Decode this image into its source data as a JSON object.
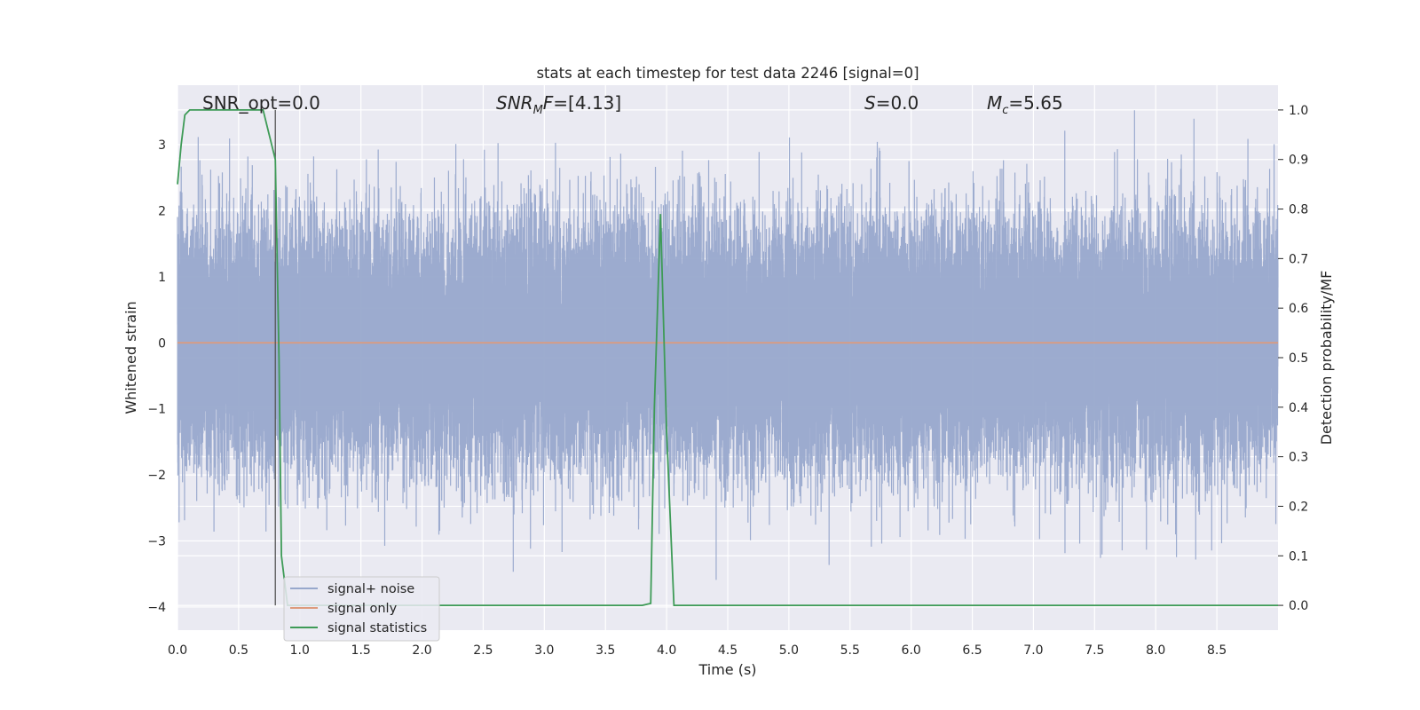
{
  "chart_data": {
    "type": "line",
    "title": "stats at each timestep for test data 2246 [signal=0]",
    "xlabel": "Time (s)",
    "ylabel": "Whitened strain",
    "y2label": "Detection probability/MF",
    "xlim": [
      0,
      9.0
    ],
    "ylim": [
      -4.35,
      3.9
    ],
    "y2lim": [
      -0.05,
      1.05
    ],
    "x_ticks": [
      "0.0",
      "0.5",
      "1.0",
      "1.5",
      "2.0",
      "2.5",
      "3.0",
      "3.5",
      "4.0",
      "4.5",
      "5.0",
      "5.5",
      "6.0",
      "6.5",
      "7.0",
      "7.5",
      "8.0",
      "8.5"
    ],
    "y_ticks": [
      "3",
      "2",
      "1",
      "0",
      "−1",
      "−2",
      "−3",
      "−4"
    ],
    "y2_ticks": [
      "1.0",
      "0.9",
      "0.8",
      "0.7",
      "0.6",
      "0.5",
      "0.4",
      "0.3",
      "0.2",
      "0.1",
      "0.0"
    ],
    "grid": true,
    "legend_position": "lower-left",
    "annotations": {
      "snr_opt": "SNR_opt=0.0",
      "snr_mf_sym": "SNR",
      "snr_mf_sub": "M",
      "snr_mf_sym2": "F",
      "snr_mf_val": "=[4.13]",
      "s_sym": "S",
      "s_val": "=0.0",
      "mc_sym": "M",
      "mc_sub": "c",
      "mc_val": "=5.65"
    },
    "vertical_marker_x": 0.8,
    "series": [
      {
        "name": "signal+ noise",
        "color": "#98a8cc",
        "kind": "noise",
        "sample_rate": 4096,
        "amplitude_std": 0.9
      },
      {
        "name": "signal only",
        "color": "#dd9a7c",
        "kind": "line",
        "x": [
          0.0,
          9.0
        ],
        "y": [
          0.0,
          0.0
        ]
      },
      {
        "name": "signal statistics",
        "color": "#3e9b57",
        "kind": "line2",
        "x": [
          0.0,
          0.03,
          0.06,
          0.1,
          0.2,
          0.4,
          0.6,
          0.7,
          0.8,
          0.83,
          0.85,
          0.9,
          1.0,
          2.0,
          3.0,
          3.8,
          3.87,
          3.9,
          3.95,
          4.0,
          4.06,
          4.1,
          5.0,
          6.0,
          7.0,
          7.7,
          8.0,
          9.0
        ],
        "y": [
          0.85,
          0.93,
          0.99,
          1.0,
          1.0,
          1.0,
          1.0,
          1.0,
          0.9,
          0.5,
          0.1,
          0.0,
          0.0,
          0.0,
          0.0,
          0.0,
          0.004,
          0.4,
          0.79,
          0.35,
          0.0,
          0.0,
          0.0,
          0.0,
          0.0,
          0.0,
          0.0,
          0.0
        ]
      }
    ]
  }
}
